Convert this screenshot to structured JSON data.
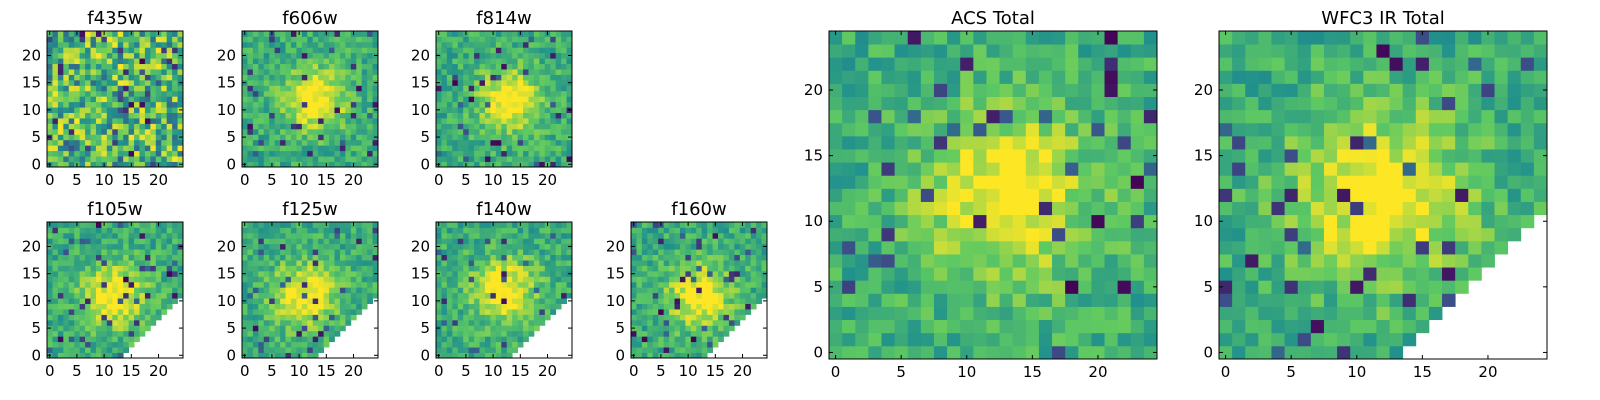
{
  "figure": {
    "colormap": [
      "#440154",
      "#3b528b",
      "#21918c",
      "#5ec962",
      "#fde725"
    ],
    "grid_size": 25
  },
  "chart_data": [
    {
      "type": "heatmap",
      "title": "f435w",
      "xlim": [
        0,
        24
      ],
      "ylim": [
        0,
        24
      ],
      "xticks": [
        0,
        5,
        10,
        15,
        20
      ],
      "yticks": [
        0,
        5,
        10,
        15,
        20
      ],
      "pattern": "noise",
      "peak": [
        12,
        12
      ]
    },
    {
      "type": "heatmap",
      "title": "f606w",
      "xlim": [
        0,
        24
      ],
      "ylim": [
        0,
        24
      ],
      "xticks": [
        0,
        5,
        10,
        15,
        20
      ],
      "yticks": [
        0,
        5,
        10,
        15,
        20
      ],
      "pattern": "source",
      "peak": [
        13,
        12
      ]
    },
    {
      "type": "heatmap",
      "title": "f814w",
      "xlim": [
        0,
        24
      ],
      "ylim": [
        0,
        24
      ],
      "xticks": [
        0,
        5,
        10,
        15,
        20
      ],
      "yticks": [
        0,
        5,
        10,
        15,
        20
      ],
      "pattern": "source",
      "peak": [
        13,
        12
      ]
    },
    {
      "type": "heatmap",
      "title": "f105w",
      "xlim": [
        0,
        24
      ],
      "ylim": [
        0,
        24
      ],
      "xticks": [
        0,
        5,
        10,
        15,
        20
      ],
      "yticks": [
        0,
        5,
        10,
        15,
        20
      ],
      "pattern": "masked",
      "peak": [
        12,
        11
      ]
    },
    {
      "type": "heatmap",
      "title": "f125w",
      "xlim": [
        0,
        24
      ],
      "ylim": [
        0,
        24
      ],
      "xticks": [
        0,
        5,
        10,
        15,
        20
      ],
      "yticks": [
        0,
        5,
        10,
        15,
        20
      ],
      "pattern": "masked",
      "peak": [
        11,
        11
      ]
    },
    {
      "type": "heatmap",
      "title": "f140w",
      "xlim": [
        0,
        24
      ],
      "ylim": [
        0,
        24
      ],
      "xticks": [
        0,
        5,
        10,
        15,
        20
      ],
      "yticks": [
        0,
        5,
        10,
        15,
        20
      ],
      "pattern": "masked",
      "peak": [
        12,
        12
      ]
    },
    {
      "type": "heatmap",
      "title": "f160w",
      "xlim": [
        0,
        24
      ],
      "ylim": [
        0,
        24
      ],
      "xticks": [
        0,
        5,
        10,
        15,
        20
      ],
      "yticks": [
        0,
        5,
        10,
        15,
        20
      ],
      "pattern": "masked",
      "peak": [
        12,
        11
      ]
    },
    {
      "type": "heatmap",
      "title": "ACS Total",
      "xlim": [
        0,
        24
      ],
      "ylim": [
        0,
        24
      ],
      "xticks": [
        0,
        5,
        10,
        15,
        20
      ],
      "yticks": [
        0,
        5,
        10,
        15,
        20
      ],
      "pattern": "source",
      "peak": [
        13,
        12
      ]
    },
    {
      "type": "heatmap",
      "title": "WFC3 IR Total",
      "xlim": [
        0,
        24
      ],
      "ylim": [
        0,
        24
      ],
      "xticks": [
        0,
        5,
        10,
        15,
        20
      ],
      "yticks": [
        0,
        5,
        10,
        15,
        20
      ],
      "pattern": "masked",
      "peak": [
        12,
        12
      ]
    }
  ]
}
